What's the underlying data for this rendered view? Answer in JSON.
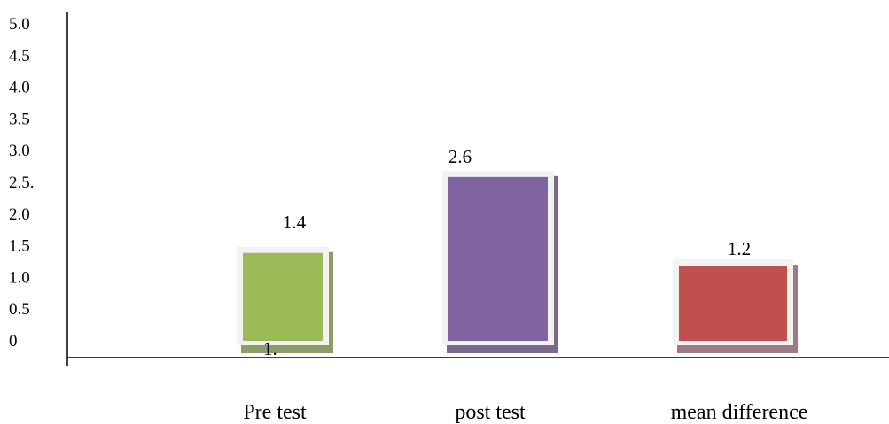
{
  "chart_data": {
    "type": "bar",
    "categories": [
      "Pre test",
      "post test",
      "mean difference"
    ],
    "values": [
      1.4,
      2.6,
      1.2
    ],
    "data_labels": [
      "1.4",
      "2.6",
      "1.2"
    ],
    "stray_label": "1.",
    "y_tick_labels": [
      "0",
      "0.5",
      "1.0",
      "1.5",
      "2.0",
      "2.5.",
      "3.0",
      "3.5",
      "4.0",
      "4.5",
      "5.0"
    ],
    "ylim": [
      0,
      5
    ],
    "grid": false,
    "legend": "none",
    "title": "",
    "xlabel": "",
    "ylabel": "",
    "bar_colors": [
      "#9bbb59",
      "#8064a2",
      "#c0504d"
    ],
    "bar_frame_color": "#f2f2f2",
    "bar_shadow_colors": [
      "#8a9e6a",
      "#7a6a8e",
      "#9e7a82"
    ]
  }
}
